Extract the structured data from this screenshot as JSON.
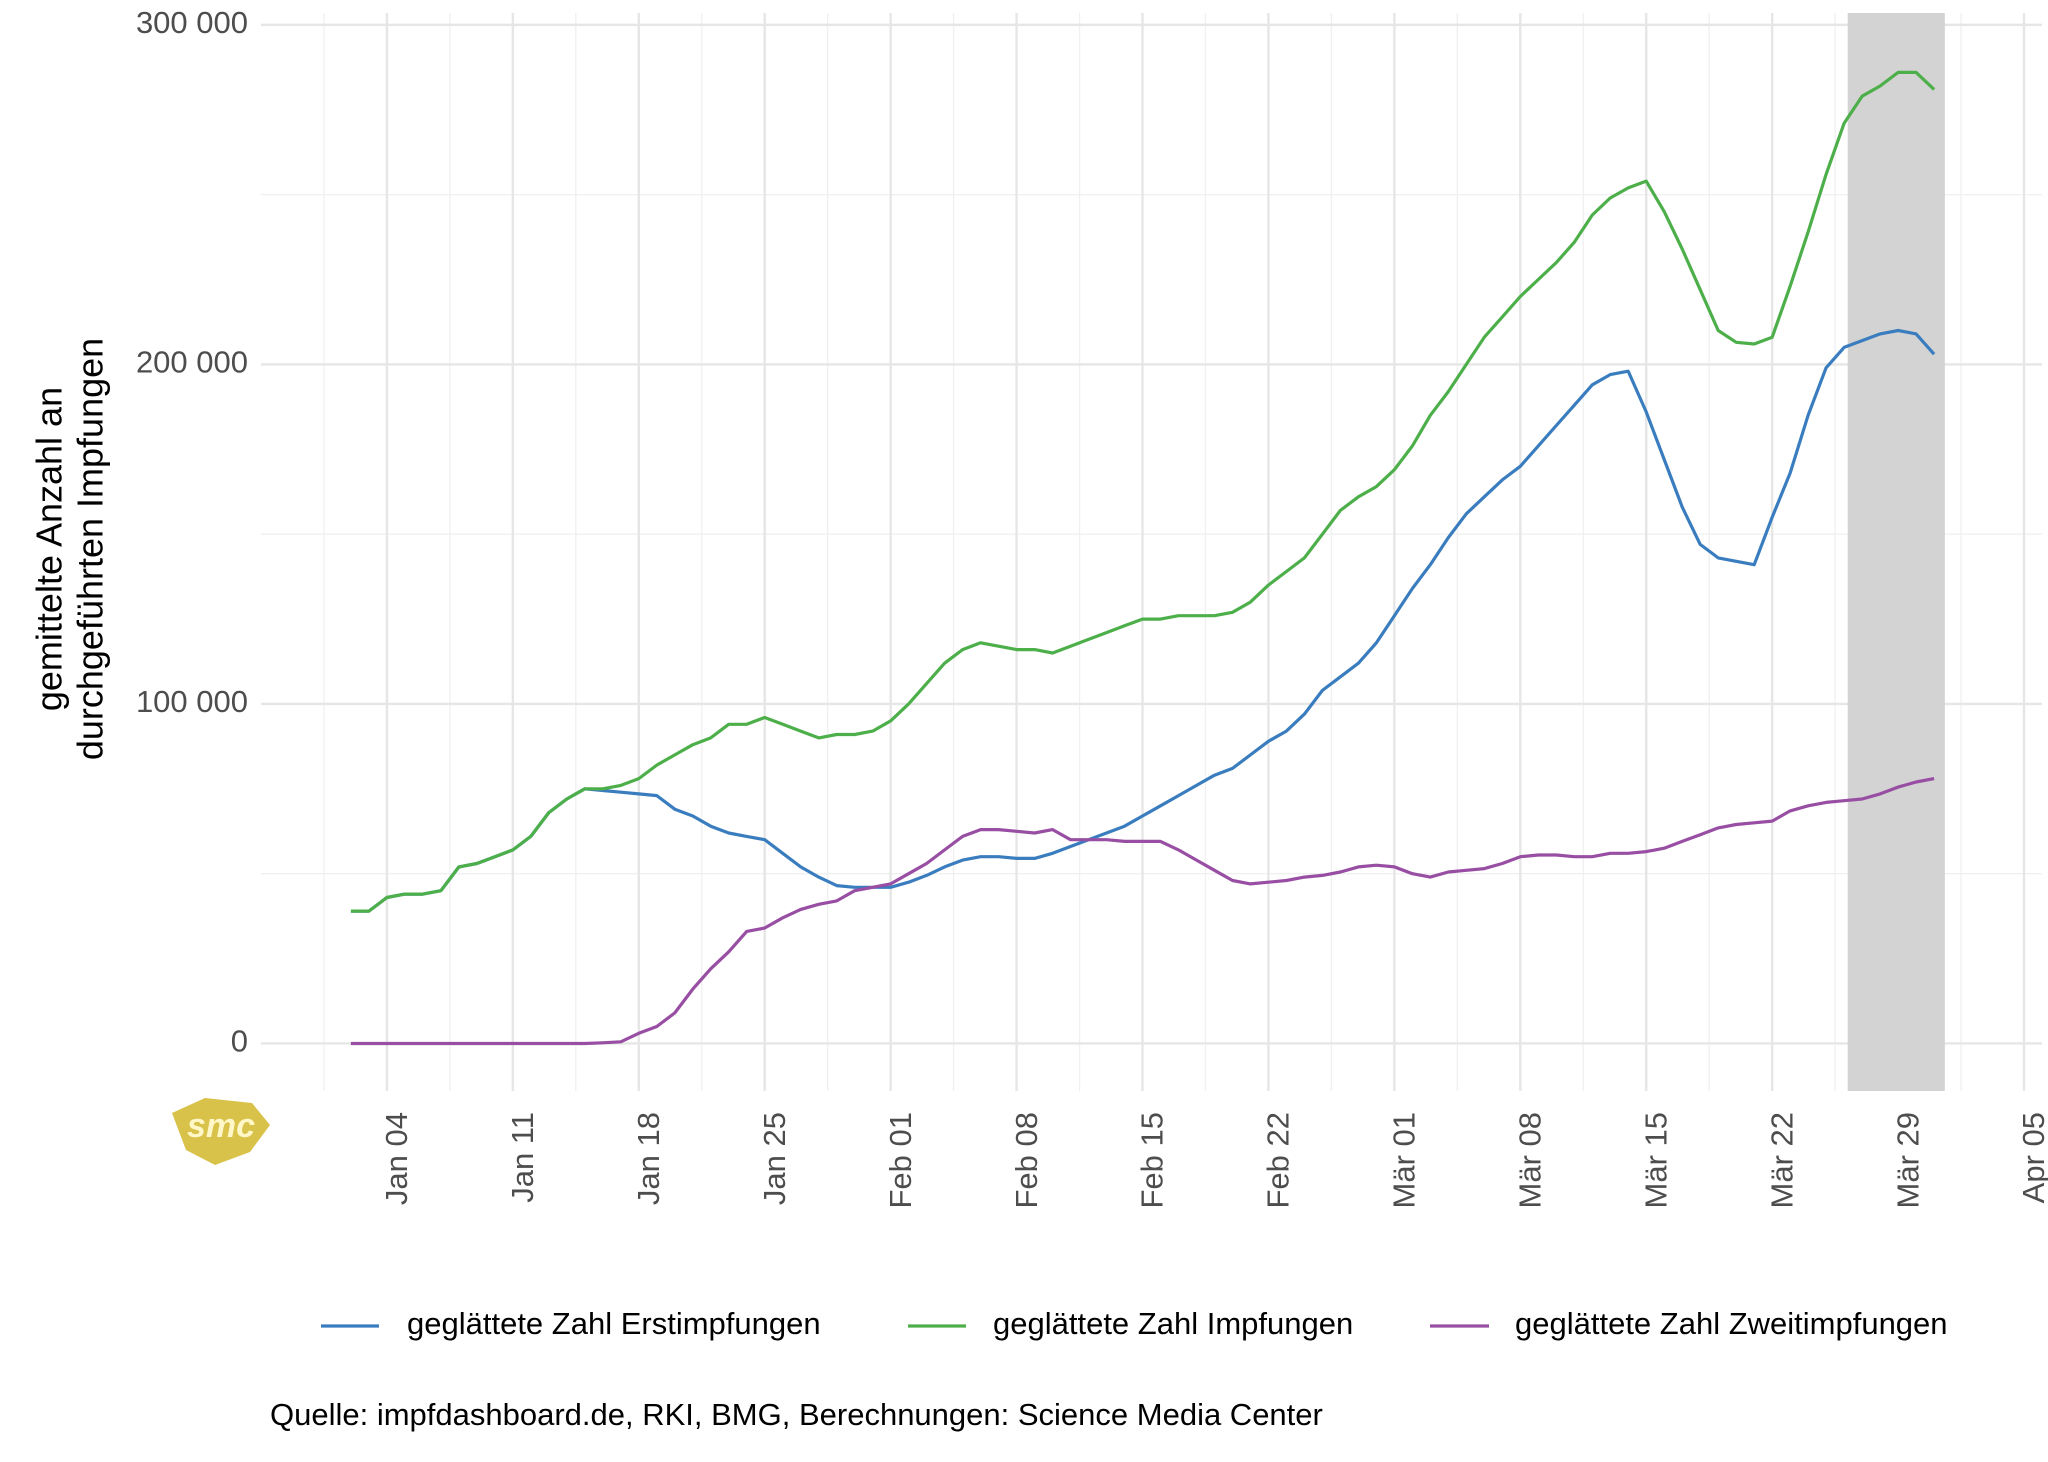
{
  "chart_data": {
    "type": "line",
    "y_label": [
      "gemittelte Anzahl an",
      "durchgeführten Impfungen"
    ],
    "source": "Quelle: impfdashboard.de, RKI, BMG, Berechnungen: Science Media Center",
    "logo_text": "smc",
    "x": [
      2,
      3,
      4,
      5,
      6,
      7,
      8,
      9,
      10,
      11,
      12,
      13,
      14,
      15,
      16,
      17,
      18,
      19,
      20,
      21,
      22,
      23,
      24,
      25,
      26,
      27,
      28,
      29,
      30,
      31,
      32,
      33,
      34,
      35,
      36,
      37,
      38,
      39,
      40,
      41,
      42,
      43,
      44,
      45,
      46,
      47,
      48,
      49,
      50,
      51,
      52,
      53,
      54,
      55,
      56,
      57,
      58,
      59,
      60,
      61,
      62,
      63,
      64,
      65,
      66,
      67,
      68,
      69,
      70,
      71,
      72,
      73,
      74,
      75,
      76,
      77,
      78,
      79,
      80,
      81,
      82,
      83,
      84,
      85,
      86,
      87,
      88,
      89,
      90
    ],
    "series": [
      {
        "name": "geglättete Zahl Erstimpfungen",
        "color": "#3a7dbf",
        "values": [
          39000,
          39000,
          43000,
          44000,
          44000,
          45000,
          52000,
          53000,
          55000,
          57000,
          61000,
          68000,
          72000,
          75000,
          74500,
          74000,
          73500,
          73000,
          69000,
          67000,
          64000,
          62000,
          61000,
          60000,
          56000,
          52000,
          49000,
          46500,
          46000,
          46000,
          46000,
          47500,
          49500,
          52000,
          54000,
          55000,
          55000,
          54500,
          54500,
          56000,
          58000,
          60000,
          62000,
          64000,
          67000,
          70000,
          73000,
          76000,
          79000,
          81000,
          85000,
          89000,
          92000,
          97000,
          104000,
          108000,
          112000,
          118000,
          126000,
          134000,
          141000,
          149000,
          156000,
          161000,
          166000,
          170000,
          176000,
          182000,
          188000,
          194000,
          197000,
          198000,
          186000,
          172000,
          158000,
          147000,
          143000,
          142000,
          141000,
          155000,
          168000,
          185000,
          199000,
          205000,
          207000,
          209000,
          210000,
          209000,
          203000
        ]
      },
      {
        "name": "geglättete Zahl Impfungen",
        "color": "#4daf4a",
        "values": [
          39000,
          39000,
          43000,
          44000,
          44000,
          45000,
          52000,
          53000,
          55000,
          57000,
          61000,
          68000,
          72000,
          75000,
          75000,
          76000,
          78000,
          82000,
          85000,
          88000,
          90000,
          94000,
          94000,
          96000,
          94000,
          92000,
          90000,
          91000,
          91000,
          92000,
          95000,
          100000,
          106000,
          112000,
          116000,
          118000,
          117000,
          116000,
          116000,
          115000,
          117000,
          119000,
          121000,
          123000,
          125000,
          125000,
          126000,
          126000,
          126000,
          127000,
          130000,
          135000,
          139000,
          143000,
          150000,
          157000,
          161000,
          164000,
          169000,
          176000,
          185000,
          192000,
          200000,
          208000,
          214000,
          220000,
          225000,
          230000,
          236000,
          244000,
          249000,
          252000,
          254000,
          245000,
          234000,
          222000,
          210000,
          206500,
          206000,
          208000,
          223000,
          239000,
          256000,
          271000,
          279000,
          282000,
          286000,
          286000,
          281000
        ]
      },
      {
        "name": "geglättete Zahl Zweitimpfungen",
        "color": "#984ea3",
        "values": [
          0,
          0,
          0,
          0,
          0,
          0,
          0,
          0,
          0,
          0,
          0,
          0,
          0,
          0,
          200,
          500,
          3000,
          5000,
          9000,
          16000,
          22000,
          27000,
          33000,
          34000,
          37000,
          39500,
          41000,
          42000,
          45000,
          46000,
          47000,
          50000,
          53000,
          57000,
          61000,
          63000,
          63000,
          62500,
          62000,
          63000,
          60000,
          60000,
          60000,
          59500,
          59500,
          59500,
          57000,
          54000,
          51000,
          48000,
          47000,
          47500,
          48000,
          49000,
          49500,
          50500,
          52000,
          52500,
          52000,
          50000,
          49000,
          50500,
          51000,
          51500,
          53000,
          55000,
          55500,
          55500,
          55000,
          55000,
          56000,
          56000,
          56500,
          57500,
          59500,
          61500,
          63500,
          64500,
          65000,
          65500,
          68500,
          70000,
          71000,
          71500,
          72000,
          73500,
          75500,
          77000,
          78000
        ]
      }
    ],
    "xlim": [
      -3,
      96
    ],
    "xticks": [
      {
        "value": 4,
        "label": "Jan 04"
      },
      {
        "value": 11,
        "label": "Jan 11"
      },
      {
        "value": 18,
        "label": "Jan 18"
      },
      {
        "value": 25,
        "label": "Jan 25"
      },
      {
        "value": 32,
        "label": "Feb 01"
      },
      {
        "value": 39,
        "label": "Feb 08"
      },
      {
        "value": 46,
        "label": "Feb 15"
      },
      {
        "value": 53,
        "label": "Feb 22"
      },
      {
        "value": 60,
        "label": "Mär 01"
      },
      {
        "value": 67,
        "label": "Mär 08"
      },
      {
        "value": 74,
        "label": "Mär 15"
      },
      {
        "value": 81,
        "label": "Mär 22"
      },
      {
        "value": 88,
        "label": "Mär 29"
      },
      {
        "value": 95,
        "label": "Apr 05"
      }
    ],
    "ylim": [
      -14000,
      303500
    ],
    "yticks": [
      0,
      {
        "value": 100000,
        "label": "100 000"
      },
      {
        "value": 200000,
        "label": "200 000"
      },
      {
        "value": 300000,
        "label": "300 000"
      }
    ],
    "highlight_range": [
      85.2,
      90.6
    ],
    "highlight_color": "#d3d3d3",
    "grid": true,
    "legend": "bottom"
  }
}
